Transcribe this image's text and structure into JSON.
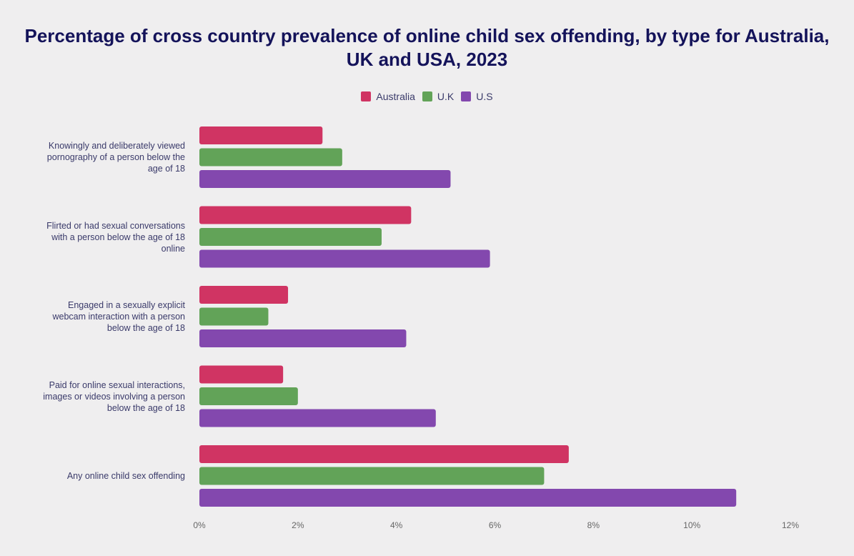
{
  "chart_data": {
    "type": "hbar",
    "title": "Percentage of cross country prevalence of online child sex offending, by type for Australia, UK and USA, 2023",
    "categories": [
      "Knowingly and deliberately viewed pornography of a person below the age of 18",
      "Flirted or had sexual conversations with a person below the age of 18 online",
      "Engaged in a sexually explicit webcam interaction with a person below the age of 18",
      "Paid for online sexual interactions, images or videos involving a person below the age of 18",
      "Any online child sex offending"
    ],
    "series": [
      {
        "name": "Australia",
        "color": "#d03463",
        "values": [
          2.5,
          4.3,
          1.8,
          1.7,
          7.5
        ]
      },
      {
        "name": "U.K",
        "color": "#62a358",
        "values": [
          2.9,
          3.7,
          1.4,
          2.0,
          7.0
        ]
      },
      {
        "name": "U.S",
        "color": "#8348ae",
        "values": [
          5.1,
          5.9,
          4.2,
          4.8,
          10.9
        ]
      }
    ],
    "xlim": [
      0,
      12
    ],
    "xticks": [
      {
        "value": 0,
        "label": "0%"
      },
      {
        "value": 2,
        "label": "2%"
      },
      {
        "value": 4,
        "label": "4%"
      },
      {
        "value": 6,
        "label": "6%"
      },
      {
        "value": 8,
        "label": "8%"
      },
      {
        "value": 10,
        "label": "10%"
      },
      {
        "value": 12,
        "label": "12%"
      }
    ],
    "legend": "top"
  }
}
